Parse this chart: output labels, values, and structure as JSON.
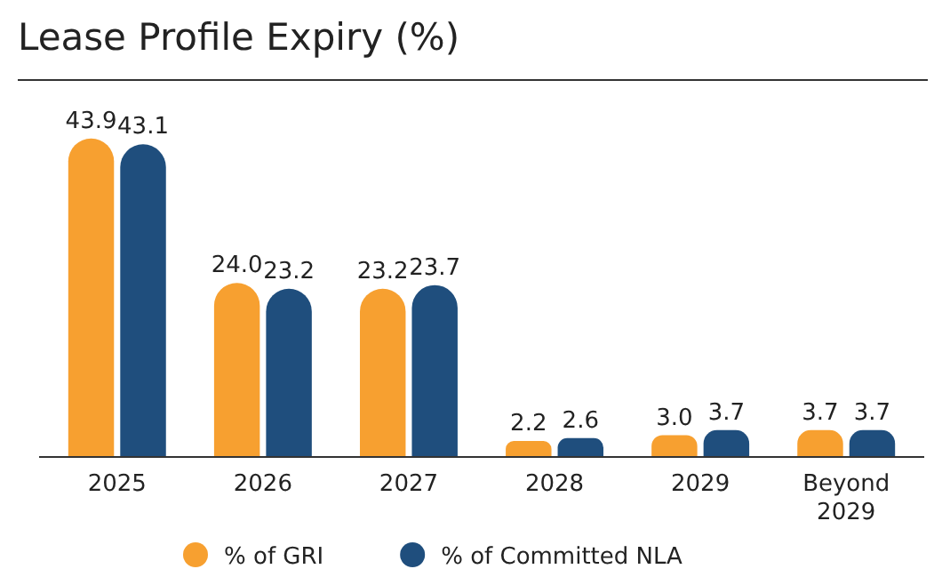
{
  "chart_data": {
    "type": "bar",
    "title": "Lease Profile Expiry (%)",
    "categories": [
      "2025",
      "2026",
      "2027",
      "2028",
      "2029",
      "Beyond 2029"
    ],
    "series": [
      {
        "name": "% of GRI",
        "color": "#f7a030",
        "values": [
          43.9,
          24.0,
          23.2,
          2.2,
          3.0,
          3.7
        ],
        "value_labels": [
          "43.9",
          "24.0",
          "23.2",
          "2.2",
          "3.0",
          "3.7"
        ]
      },
      {
        "name": "% of Committed NLA",
        "color": "#1f4e7d",
        "values": [
          43.1,
          23.2,
          23.7,
          2.6,
          3.7,
          3.7
        ],
        "value_labels": [
          "43.1",
          "23.2",
          "23.7",
          "2.6",
          "3.7",
          "3.7"
        ]
      }
    ],
    "legend": "bottom"
  }
}
